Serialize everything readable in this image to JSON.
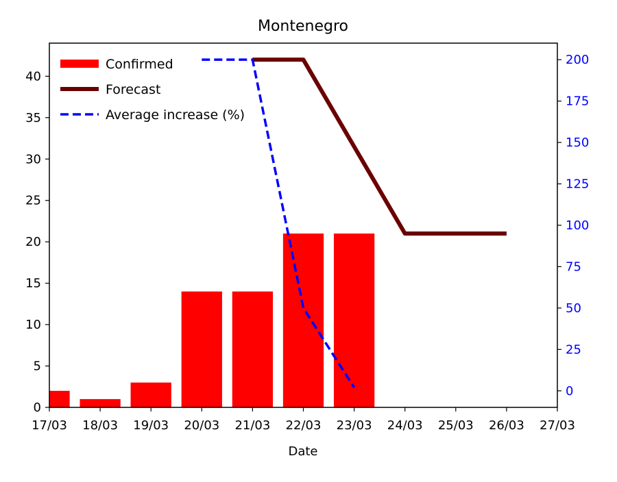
{
  "chart_data": {
    "type": "bar",
    "title": "Montenegro",
    "xlabel": "Date",
    "ylabel": "",
    "y2label": "",
    "xticks": [
      "17/03",
      "18/03",
      "19/03",
      "20/03",
      "21/03",
      "22/03",
      "23/03",
      "24/03",
      "25/03",
      "26/03",
      "27/03"
    ],
    "xlim": [
      0,
      10
    ],
    "ylim": [
      0,
      44
    ],
    "y2lim": [
      -10,
      210
    ],
    "yticks": [
      0,
      5,
      10,
      15,
      20,
      25,
      30,
      35,
      40
    ],
    "y2ticks": [
      0,
      25,
      50,
      75,
      100,
      125,
      150,
      175,
      200
    ],
    "grid": false,
    "legend_position": "upper-left",
    "series": [
      {
        "name": "Confirmed",
        "kind": "bar",
        "axis": "left",
        "color": "#ff0000",
        "points": [
          {
            "x": "17/03",
            "y": 2
          },
          {
            "x": "18/03",
            "y": 1
          },
          {
            "x": "19/03",
            "y": 3
          },
          {
            "x": "20/03",
            "y": 14
          },
          {
            "x": "21/03",
            "y": 14
          },
          {
            "x": "22/03",
            "y": 21
          },
          {
            "x": "23/03",
            "y": 21
          }
        ]
      },
      {
        "name": "Forecast",
        "kind": "line",
        "axis": "left",
        "color": "#6b0000",
        "style": "solid",
        "points": [
          {
            "x": "21/03",
            "y": 42
          },
          {
            "x": "22/03",
            "y": 42
          },
          {
            "x": "24/03",
            "y": 21
          },
          {
            "x": "26/03",
            "y": 21
          }
        ]
      },
      {
        "name": "Average increase (%)",
        "kind": "line",
        "axis": "right",
        "color": "#0000ff",
        "style": "dashed",
        "points": [
          {
            "x": "20/03",
            "y": 200
          },
          {
            "x": "21/03",
            "y": 200
          },
          {
            "x": "22/03",
            "y": 50
          },
          {
            "x": "23/03",
            "y": 2
          }
        ]
      }
    ]
  }
}
